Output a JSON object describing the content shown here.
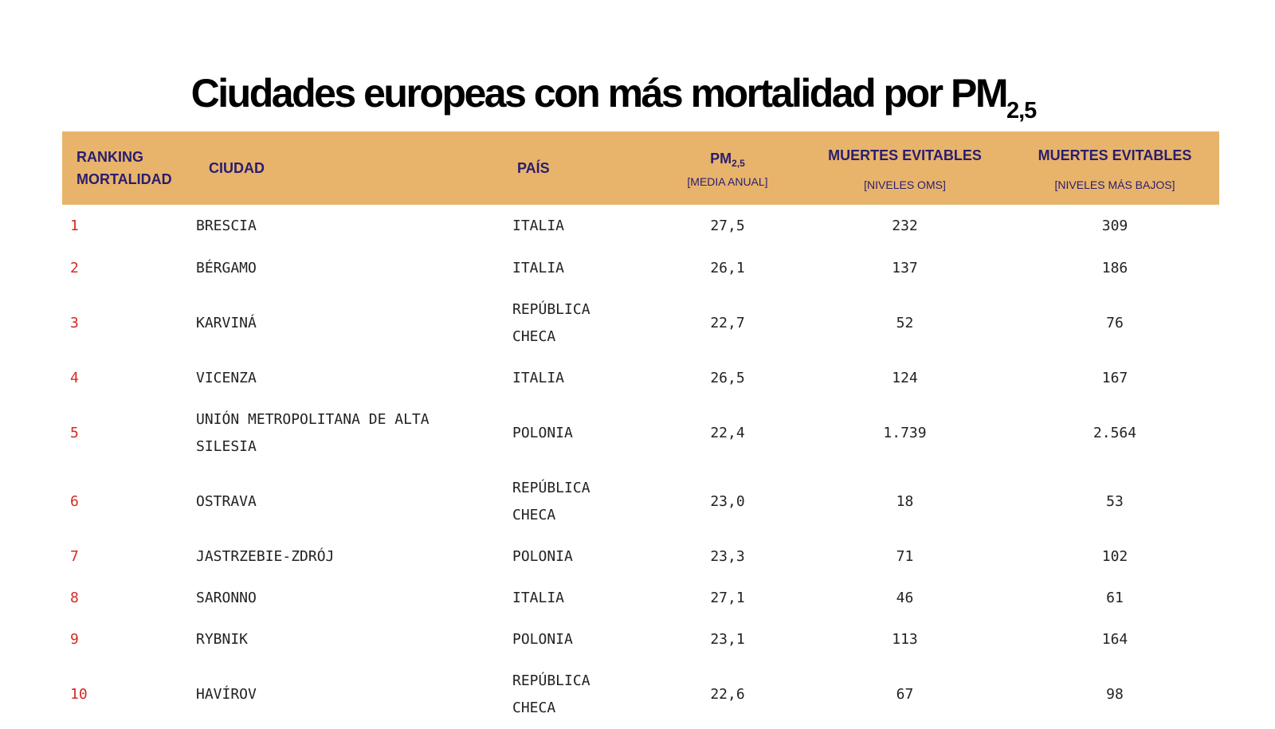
{
  "title": {
    "text": "Ciudades europeas con más mortalidad por PM",
    "subscript": "2,5"
  },
  "table": {
    "headers": {
      "ranking_line1": "RANKING",
      "ranking_line2": "MORTALIDAD",
      "ciudad": "CIUDAD",
      "pais": "PAÍS",
      "pm_main": "PM",
      "pm_sub": "2,5",
      "pm_note": "[MEDIA ANUAL]",
      "muertes_oms": "MUERTES EVITABLES",
      "muertes_oms_note": "[NIVELES OMS]",
      "muertes_bajos": "MUERTES EVITABLES",
      "muertes_bajos_note": "[NIVELES MÁS BAJOS]"
    },
    "rows": [
      {
        "rank": "1",
        "city": "BRESCIA",
        "country_line1": "ITALIA",
        "country_line2": "",
        "pm": "27,5",
        "oms": "232",
        "bajos": "309"
      },
      {
        "rank": "2",
        "city": "BÉRGAMO",
        "country_line1": "ITALIA",
        "country_line2": "",
        "pm": "26,1",
        "oms": "137",
        "bajos": "186"
      },
      {
        "rank": "3",
        "city": "KARVINÁ",
        "country_line1": "REPÚBLICA",
        "country_line2": "CHECA",
        "pm": "22,7",
        "oms": "52",
        "bajos": "76"
      },
      {
        "rank": "4",
        "city": "VICENZA",
        "country_line1": "ITALIA",
        "country_line2": "",
        "pm": "26,5",
        "oms": "124",
        "bajos": "167"
      },
      {
        "rank": "5",
        "city": "UNIÓN METROPOLITANA DE ALTA",
        "city_line2": "SILESIA",
        "country_line1": "POLONIA",
        "country_line2": "",
        "pm": "22,4",
        "oms": "1.739",
        "bajos": "2.564"
      },
      {
        "rank": "6",
        "city": "OSTRAVA",
        "country_line1": "REPÚBLICA",
        "country_line2": "CHECA",
        "pm": "23,0",
        "oms": "18",
        "bajos": "53"
      },
      {
        "rank": "7",
        "city": "JASTRZEBIE-ZDRÓJ",
        "country_line1": "POLONIA",
        "country_line2": "",
        "pm": "23,3",
        "oms": "71",
        "bajos": "102"
      },
      {
        "rank": "8",
        "city": "SARONNO",
        "country_line1": "ITALIA",
        "country_line2": "",
        "pm": "27,1",
        "oms": "46",
        "bajos": "61"
      },
      {
        "rank": "9",
        "city": "RYBNIK",
        "country_line1": "POLONIA",
        "country_line2": "",
        "pm": "23,1",
        "oms": "113",
        "bajos": "164"
      },
      {
        "rank": "10",
        "city": "HAVÍROV",
        "country_line1": "REPÚBLICA",
        "country_line2": "CHECA",
        "pm": "22,6",
        "oms": "67",
        "bajos": "98"
      }
    ]
  },
  "colors": {
    "header_bg": "#e8b46b",
    "header_text": "#2a1d6e",
    "rank_text": "#d42a22"
  }
}
